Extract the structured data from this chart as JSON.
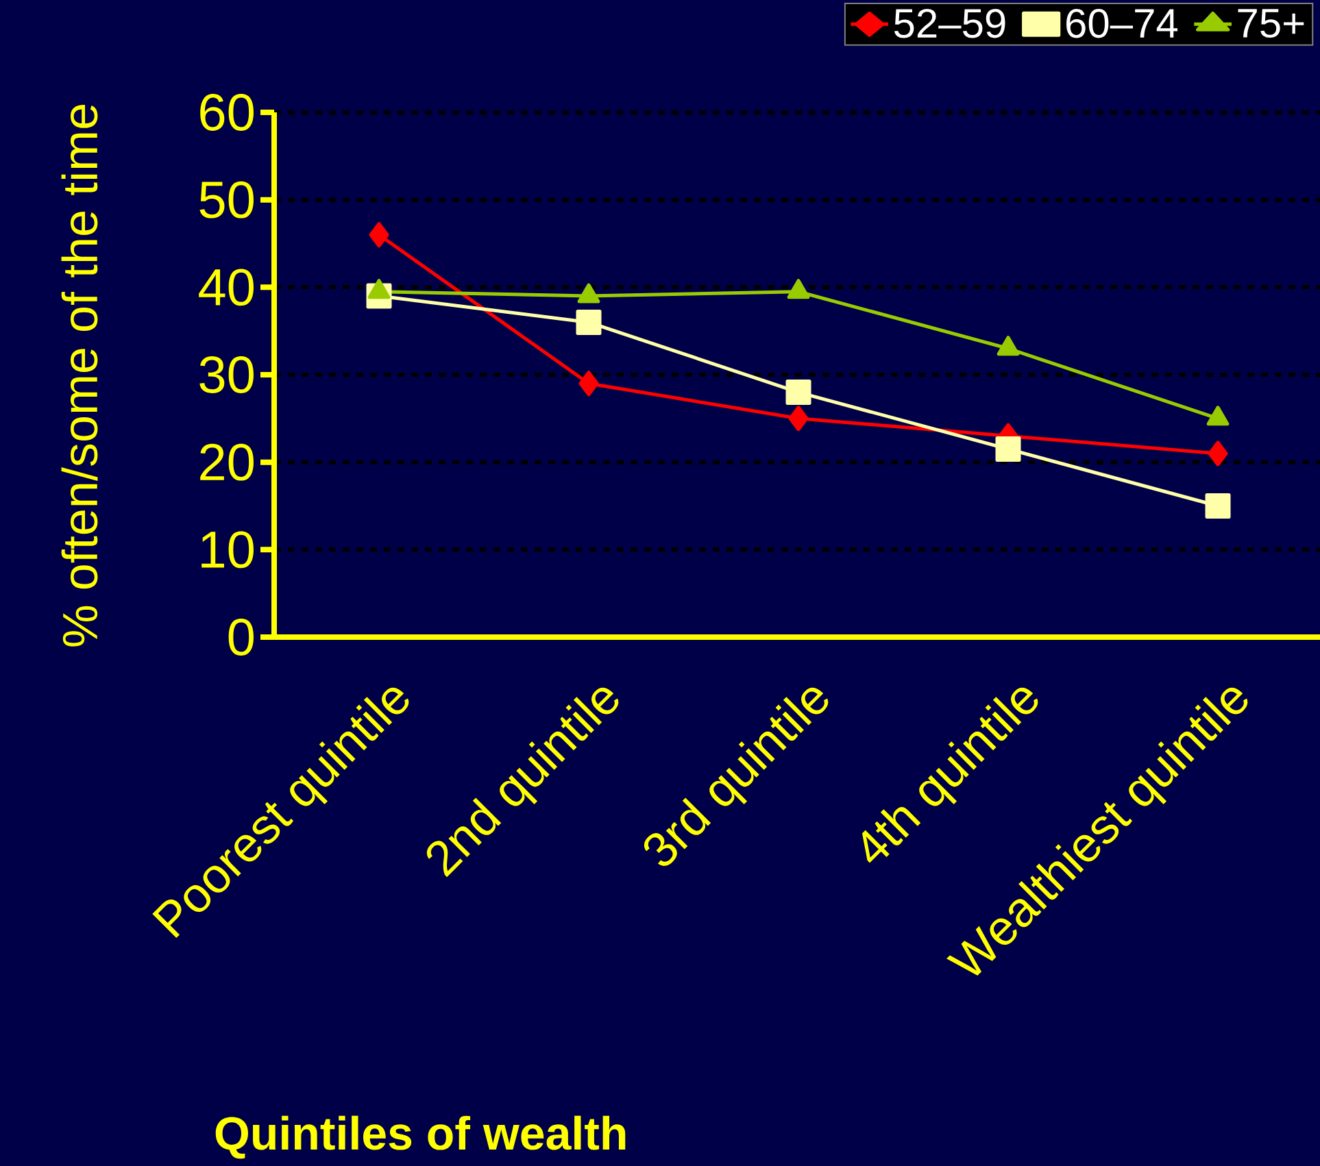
{
  "chart_data": {
    "type": "line",
    "xlabel": "Quintiles of wealth",
    "ylabel": "% often/some of the time",
    "categories": [
      "Poorest quintile",
      "2nd quintile",
      "3rd quintile",
      "4th quintile",
      "Wealthiest quintile"
    ],
    "series": [
      {
        "name": "52–59",
        "color": "#ff0000",
        "marker": "diamond",
        "values": [
          46,
          29,
          25,
          23,
          21
        ]
      },
      {
        "name": "60–74",
        "color": "#ffffaa",
        "marker": "square",
        "values": [
          39,
          36,
          28,
          21.5,
          15
        ]
      },
      {
        "name": "75+",
        "color": "#99cc00",
        "marker": "triangle",
        "values": [
          39.5,
          39,
          39.5,
          33,
          25
        ]
      }
    ],
    "ylim": [
      0,
      60
    ],
    "yticks": [
      0,
      10,
      20,
      30,
      40,
      50,
      60
    ],
    "grid": "y",
    "legend": "top right",
    "line_style": "solid"
  }
}
